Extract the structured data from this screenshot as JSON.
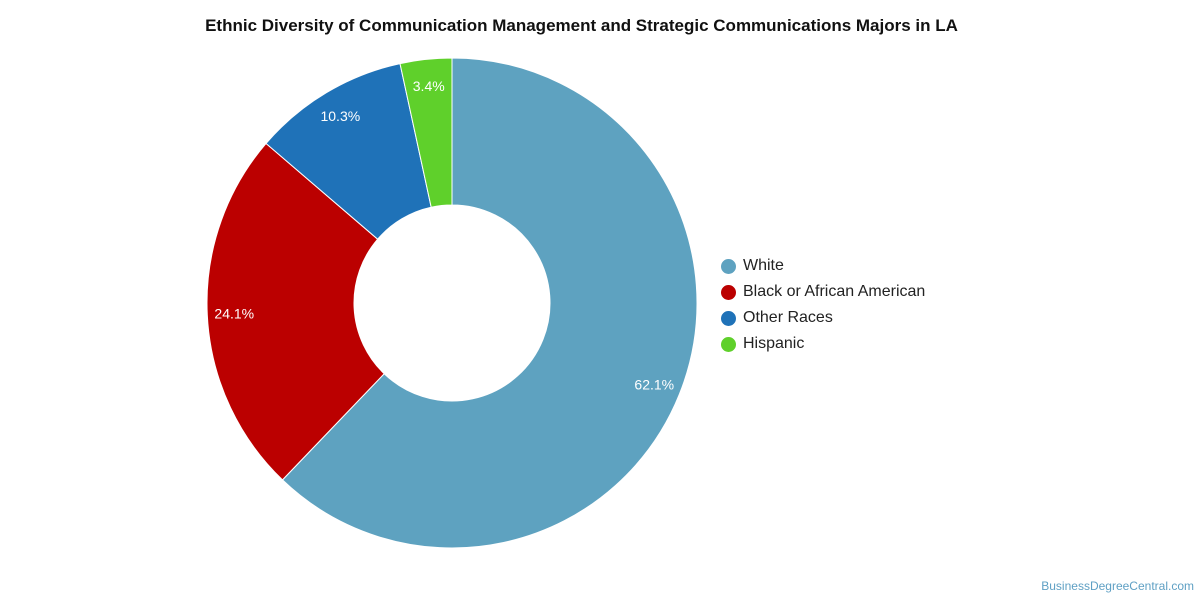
{
  "chart_data": {
    "type": "pie",
    "title": "Ethnic Diversity of Communication Management and Strategic Communications Majors in LA",
    "donut": true,
    "legend_position": "right",
    "slices": [
      {
        "label": "White",
        "value": 62.1,
        "display": "62.1%",
        "color": "#5ea2c0"
      },
      {
        "label": "Black or African American",
        "value": 24.1,
        "display": "24.1%",
        "color": "#bb0000"
      },
      {
        "label": "Other Races",
        "value": 10.3,
        "display": "10.3%",
        "color": "#1f72b8"
      },
      {
        "label": "Hispanic",
        "value": 3.4,
        "display": "3.4%",
        "color": "#5fd02b"
      }
    ]
  },
  "watermark": "BusinessDegreeCentral.com"
}
